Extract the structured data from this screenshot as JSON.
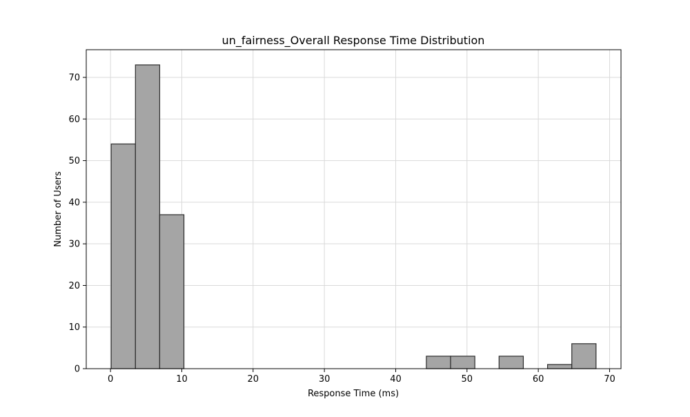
{
  "chart_data": {
    "type": "bar",
    "title": "un_fairness_Overall Response Time Distribution",
    "xlabel": "Response Time (ms)",
    "ylabel": "Number of Users",
    "xlim": [
      -3.4,
      71.6
    ],
    "ylim": [
      0,
      76.65
    ],
    "xticks": [
      0,
      10,
      20,
      30,
      40,
      50,
      60,
      70
    ],
    "yticks": [
      0,
      10,
      20,
      30,
      40,
      50,
      60,
      70
    ],
    "grid": true,
    "bar_color": "#a5a5a5",
    "edge_color": "#2b2b2b",
    "grid_color": "#d9d9d9",
    "bins": [
      {
        "x0": 0.1,
        "x1": 3.5,
        "value": 54
      },
      {
        "x0": 3.5,
        "x1": 6.9,
        "value": 73
      },
      {
        "x0": 6.9,
        "x1": 10.3,
        "value": 37
      },
      {
        "x0": 10.3,
        "x1": 13.7,
        "value": 0
      },
      {
        "x0": 13.7,
        "x1": 17.1,
        "value": 0
      },
      {
        "x0": 17.1,
        "x1": 20.5,
        "value": 0
      },
      {
        "x0": 20.5,
        "x1": 23.9,
        "value": 0
      },
      {
        "x0": 23.9,
        "x1": 27.3,
        "value": 0
      },
      {
        "x0": 27.3,
        "x1": 30.7,
        "value": 0
      },
      {
        "x0": 30.7,
        "x1": 34.1,
        "value": 0
      },
      {
        "x0": 34.1,
        "x1": 37.5,
        "value": 0
      },
      {
        "x0": 37.5,
        "x1": 40.9,
        "value": 0
      },
      {
        "x0": 40.9,
        "x1": 44.3,
        "value": 0
      },
      {
        "x0": 44.3,
        "x1": 47.7,
        "value": 3
      },
      {
        "x0": 47.7,
        "x1": 51.1,
        "value": 3
      },
      {
        "x0": 51.1,
        "x1": 54.5,
        "value": 0
      },
      {
        "x0": 54.5,
        "x1": 57.9,
        "value": 3
      },
      {
        "x0": 57.9,
        "x1": 61.3,
        "value": 0
      },
      {
        "x0": 61.3,
        "x1": 64.7,
        "value": 1
      },
      {
        "x0": 64.7,
        "x1": 68.1,
        "value": 6
      }
    ]
  }
}
